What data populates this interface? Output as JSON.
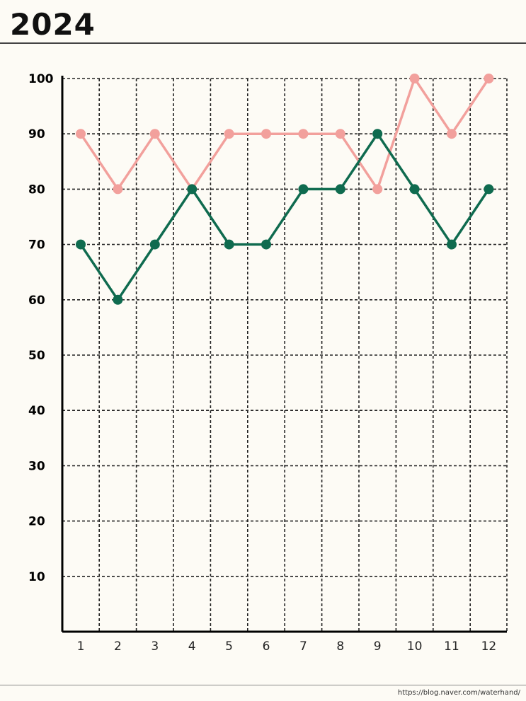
{
  "title": "2024",
  "footer_url": "https://blog.naver.com/waterhand/",
  "chart_data": {
    "type": "line",
    "title": "2024",
    "xlabel": "",
    "ylabel": "",
    "x": [
      1,
      2,
      3,
      4,
      5,
      6,
      7,
      8,
      9,
      10,
      11,
      12
    ],
    "yticks": [
      10,
      20,
      30,
      40,
      50,
      60,
      70,
      80,
      90,
      100
    ],
    "ylim": [
      0,
      100
    ],
    "grid": true,
    "series": [
      {
        "color": "#f2a09c",
        "values": [
          90,
          80,
          90,
          80,
          90,
          90,
          90,
          90,
          80,
          100,
          90,
          100
        ]
      },
      {
        "color": "#0f6b4f",
        "values": [
          70,
          60,
          70,
          80,
          70,
          70,
          80,
          80,
          90,
          80,
          70,
          80
        ]
      }
    ]
  }
}
